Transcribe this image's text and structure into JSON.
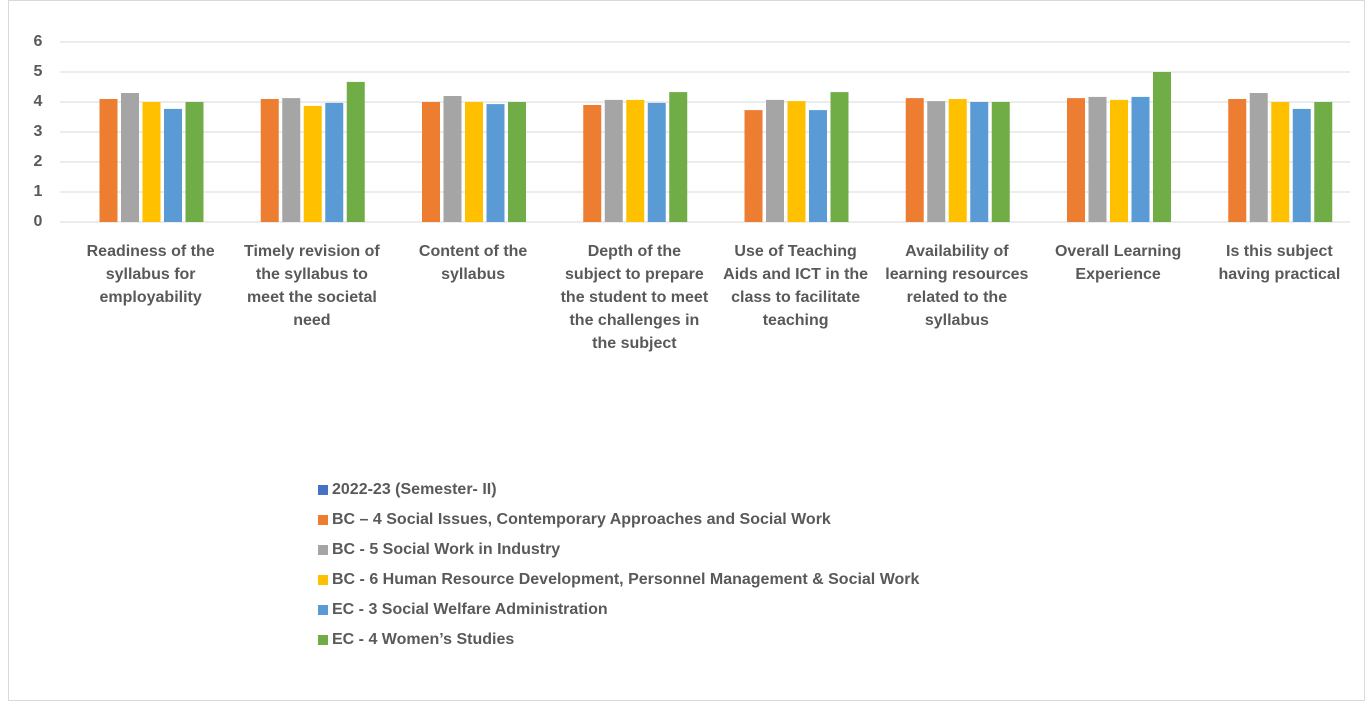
{
  "chart_data": {
    "type": "bar",
    "categories": [
      "Readiness of the syllabus for employability",
      "Timely revision of the syllabus to meet the societal need",
      "Content of the syllabus",
      "Depth of the subject to prepare the student to meet the challenges in the subject",
      "Use of Teaching Aids and ICT in the class to facilitate teaching",
      "Availability of learning resources related to the syllabus",
      "Overall Learning Experience",
      "Is this subject having practical"
    ],
    "series": [
      {
        "name": "2022-23 (Semester- II)",
        "color": "#4472c4",
        "values": [
          null,
          null,
          null,
          null,
          null,
          null,
          null,
          null
        ]
      },
      {
        "name": "BC – 4 Social Issues, Contemporary Approaches and Social Work",
        "color": "#ed7d31",
        "values": [
          4.1,
          4.1,
          4.0,
          3.9,
          3.73,
          4.13,
          4.13,
          4.1
        ]
      },
      {
        "name": "BC - 5 Social Work in Industry",
        "color": "#a5a5a5",
        "values": [
          4.3,
          4.13,
          4.2,
          4.07,
          4.07,
          4.03,
          4.17,
          4.3
        ]
      },
      {
        "name": "BC - 6 Human Resource Development, Personnel Management & Social Work",
        "color": "#ffc000",
        "values": [
          4.0,
          3.87,
          4.0,
          4.07,
          4.03,
          4.1,
          4.07,
          4.0
        ]
      },
      {
        "name": "EC - 3 Social Welfare Administration",
        "color": "#5b9bd5",
        "values": [
          3.77,
          3.97,
          3.93,
          3.97,
          3.73,
          4.0,
          4.17,
          3.77
        ]
      },
      {
        "name": "EC - 4 Women’s Studies",
        "color": "#70ad47",
        "values": [
          4.0,
          4.67,
          4.0,
          4.33,
          4.33,
          4.0,
          5.0,
          4.0
        ]
      }
    ],
    "ylim": [
      0,
      6
    ],
    "yticks": [
      0,
      1,
      2,
      3,
      4,
      5,
      6
    ],
    "grid": true,
    "legend": "bottom"
  }
}
